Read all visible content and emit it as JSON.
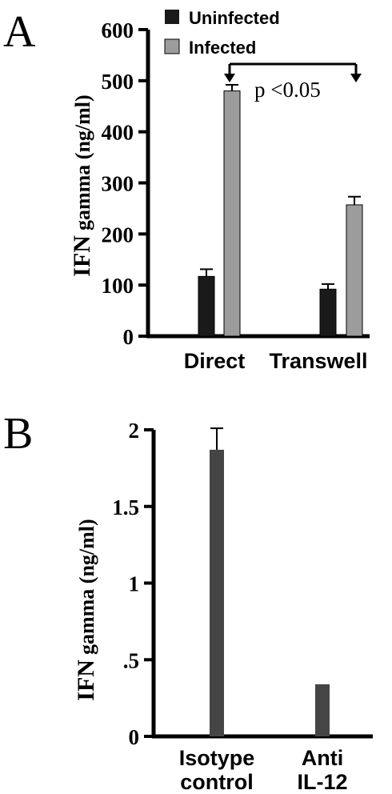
{
  "chart_data": [
    {
      "panel": "A",
      "type": "bar",
      "title": "",
      "ylabel_main": "IFN",
      "ylabel_sub": "gamma (ng/ml)",
      "xlabel": "",
      "ylim": [
        0,
        600
      ],
      "yticks": [
        "0",
        "100",
        "200",
        "300",
        "400",
        "500",
        "600"
      ],
      "categories": [
        "Direct",
        "Transwell"
      ],
      "series": [
        {
          "name": "Uninfected",
          "color": "#1a1a1a",
          "values": [
            117,
            92
          ],
          "errors": [
            14,
            10
          ]
        },
        {
          "name": "Infected",
          "color": "#9c9c9c",
          "values": [
            480,
            257
          ],
          "errors": [
            12,
            16
          ]
        }
      ],
      "legend_position": "top-right",
      "annotation": "p <0.05"
    },
    {
      "panel": "B",
      "type": "bar",
      "title": "",
      "ylabel_main": "IFN",
      "ylabel_sub": "gamma (ng/ml)",
      "xlabel": "",
      "ylim": [
        0,
        2
      ],
      "yticks": [
        "0",
        ".5",
        "1",
        "1.5",
        "2"
      ],
      "categories": [
        [
          "Isotype",
          "control"
        ],
        [
          "Anti",
          "IL-12"
        ]
      ],
      "series": [
        {
          "name": "",
          "color": "#454545",
          "values": [
            1.87,
            0.34
          ],
          "errors": [
            0.14,
            0
          ]
        }
      ]
    }
  ]
}
